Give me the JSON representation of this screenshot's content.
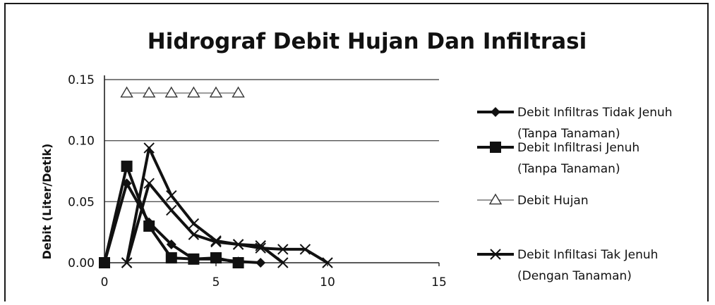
{
  "chart_data": {
    "type": "line",
    "title": "Hidrograf Debit Hujan Dan Infiltrasi",
    "xlabel": "",
    "ylabel": "Debit (Liter/Detik)",
    "xlim": [
      0,
      15
    ],
    "ylim": [
      0,
      0.15
    ],
    "xticks": [
      "0",
      "5",
      "10",
      "15"
    ],
    "yticks": [
      "0.00",
      "0.05",
      "0.10",
      "0.15"
    ],
    "grid": "horizontal",
    "legend_position": "right",
    "series": [
      {
        "name": "Debit Infiltras Tidak Jenuh",
        "name_line2": "(Tanpa Tanaman)",
        "marker": "diamond",
        "color": "#111111",
        "x": [
          0,
          1,
          2,
          3,
          4,
          5,
          6,
          7
        ],
        "y": [
          0.0,
          0.065,
          0.033,
          0.015,
          0.003,
          0.003,
          0.001,
          0.0
        ]
      },
      {
        "name": "Debit Infiltrasi Jenuh",
        "name_line2": "(Tanpa Tanaman)",
        "marker": "square",
        "color": "#111111",
        "x": [
          0,
          1,
          2,
          3,
          4,
          5,
          6
        ],
        "y": [
          0.0,
          0.079,
          0.03,
          0.004,
          0.003,
          0.004,
          0.0
        ]
      },
      {
        "name": "Debit Hujan",
        "name_line2": "",
        "marker": "triangle-open",
        "color": "#888888",
        "x": [
          1,
          2,
          3,
          4,
          5,
          6
        ],
        "y": [
          0.139,
          0.139,
          0.139,
          0.139,
          0.139,
          0.139
        ]
      },
      {
        "name": "Debit Infiltasi Tak Jenuh",
        "name_line2": "(Dengan Tanaman)",
        "marker": "x",
        "color": "#111111",
        "x": [
          1,
          2,
          3,
          4,
          5,
          6,
          7,
          8
        ],
        "y": [
          0.0,
          0.094,
          0.055,
          0.032,
          0.018,
          0.015,
          0.014,
          0.0
        ],
        "x2": [
          1,
          2,
          3,
          4,
          5,
          6,
          7,
          8,
          9,
          10
        ],
        "y2": [
          0.0,
          0.065,
          0.043,
          0.023,
          0.017,
          0.015,
          0.012,
          0.011,
          0.011,
          0.0
        ]
      }
    ]
  }
}
